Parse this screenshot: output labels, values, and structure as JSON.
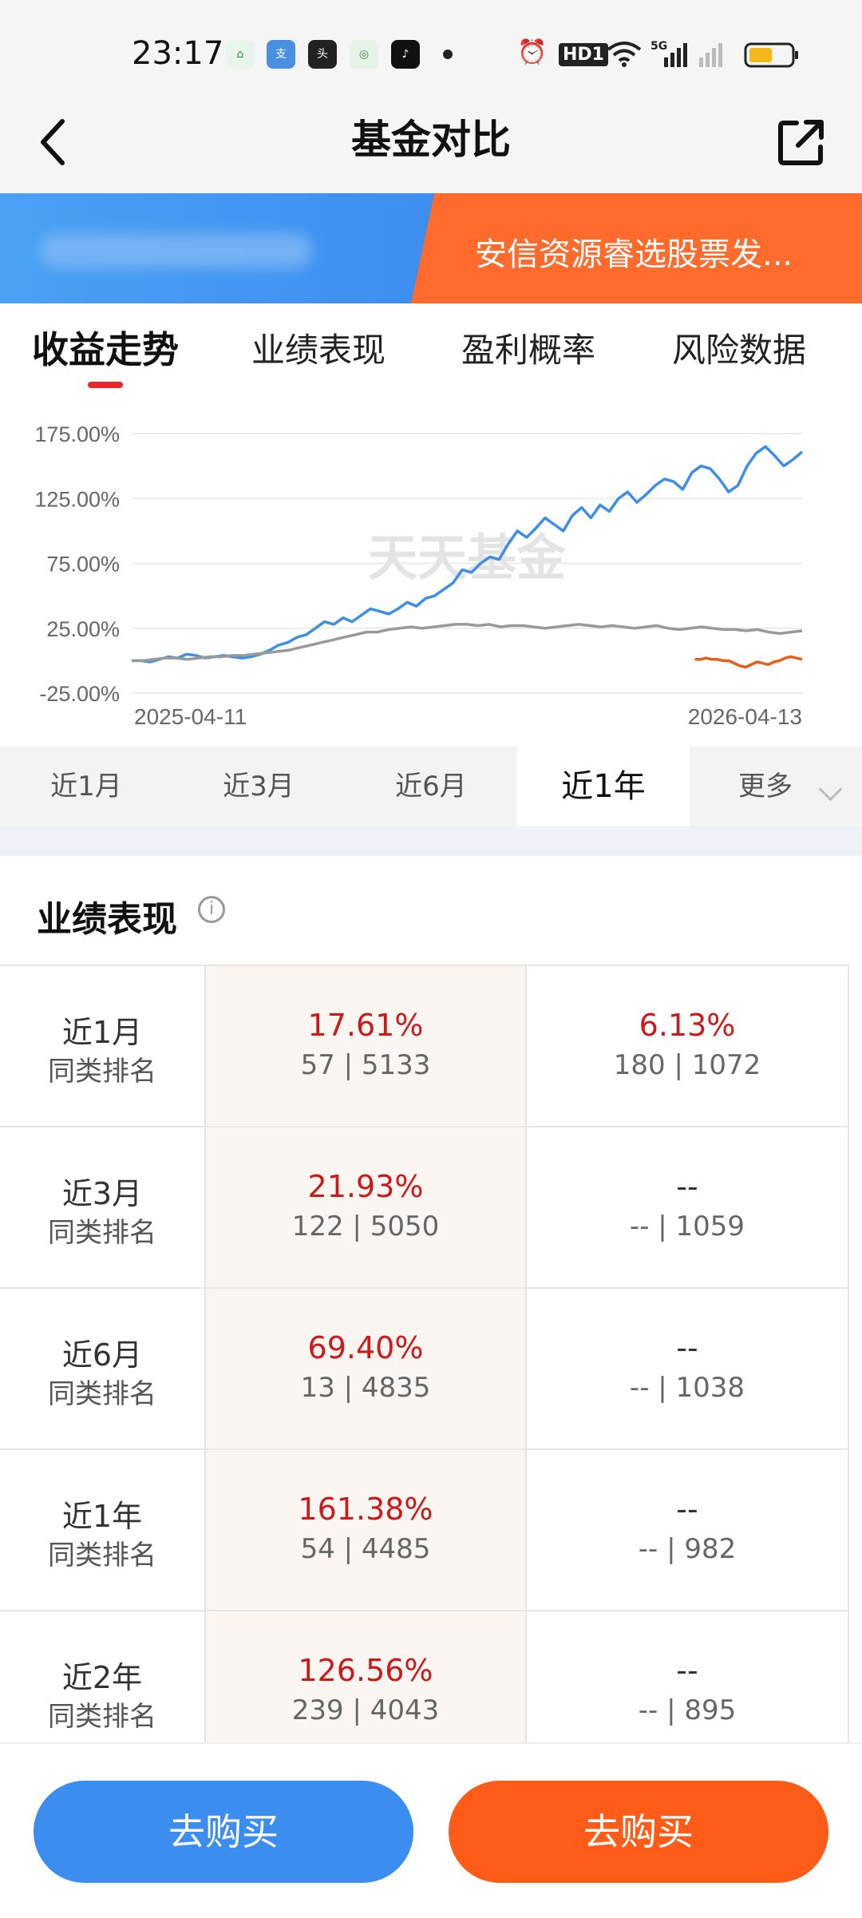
{
  "status": {
    "time": "23:17",
    "hd": "HD1",
    "net": "5G"
  },
  "header": {
    "title": "基金对比"
  },
  "banner": {
    "fund_name": "安信资源睿选股票发..."
  },
  "tabs": [
    "收益走势",
    "业绩表现",
    "盈利概率",
    "风险数据"
  ],
  "chart_data": {
    "type": "line",
    "watermark": "天天基金",
    "x_start": "2025-04-11",
    "x_end": "2026-04-13",
    "y_ticks": [
      "175.00%",
      "125.00%",
      "75.00%",
      "25.00%",
      "-25.00%"
    ],
    "ylim": [
      -25,
      175
    ],
    "colors": {
      "fund1": "#3d8ee8",
      "fund2": "#e85d1a",
      "benchmark": "#999999"
    },
    "series": [
      {
        "key": "fund1",
        "x0": 0,
        "x1": 1,
        "values": [
          0,
          0,
          -1,
          1,
          3,
          2,
          5,
          4,
          2,
          3,
          4,
          3,
          2,
          3,
          5,
          8,
          12,
          14,
          18,
          20,
          25,
          30,
          28,
          33,
          30,
          35,
          40,
          38,
          36,
          40,
          45,
          42,
          48,
          50,
          55,
          60,
          70,
          68,
          75,
          80,
          78,
          90,
          100,
          95,
          102,
          110,
          105,
          100,
          112,
          118,
          110,
          120,
          115,
          125,
          130,
          122,
          128,
          135,
          140,
          138,
          132,
          145,
          150,
          148,
          140,
          130,
          135,
          150,
          160,
          165,
          158,
          150,
          155,
          161
        ]
      },
      {
        "key": "benchmark",
        "x0": 0,
        "x1": 1,
        "values": [
          0,
          0,
          1,
          2,
          2,
          1,
          2,
          3,
          3,
          4,
          4,
          5,
          6,
          7,
          8,
          10,
          12,
          14,
          16,
          18,
          20,
          22,
          22,
          24,
          25,
          26,
          25,
          26,
          27,
          28,
          28,
          27,
          28,
          26,
          27,
          27,
          26,
          25,
          26,
          27,
          28,
          27,
          26,
          27,
          26,
          25,
          26,
          27,
          25,
          24,
          25,
          26,
          25,
          24,
          24,
          23,
          24,
          22,
          21,
          22,
          23
        ]
      },
      {
        "key": "fund2",
        "x0": 0.84,
        "x1": 1,
        "values": [
          1,
          1,
          2,
          1,
          1,
          0,
          0,
          -2,
          -4,
          -5,
          -3,
          -1,
          -2,
          -3,
          -1,
          0,
          2,
          3,
          2,
          1
        ]
      }
    ]
  },
  "range_tabs": [
    "近1月",
    "近3月",
    "近6月",
    "近1年",
    "更多"
  ],
  "perf": {
    "title": "业绩表现",
    "info_icon": "info-icon",
    "rank_label": "同类排名",
    "rows": [
      {
        "period": "近1月",
        "f1_return": "17.61%",
        "f1_rank": "57 | 5133",
        "f2_return": "6.13%",
        "f2_rank": "180 | 1072"
      },
      {
        "period": "近3月",
        "f1_return": "21.93%",
        "f1_rank": "122 | 5050",
        "f2_return": "--",
        "f2_rank": "-- | 1059"
      },
      {
        "period": "近6月",
        "f1_return": "69.40%",
        "f1_rank": "13 | 4835",
        "f2_return": "--",
        "f2_rank": "-- | 1038"
      },
      {
        "period": "近1年",
        "f1_return": "161.38%",
        "f1_rank": "54 | 4485",
        "f2_return": "--",
        "f2_rank": "-- | 982"
      },
      {
        "period": "近2年",
        "f1_return": "126.56%",
        "f1_rank": "239 | 4043",
        "f2_return": "--",
        "f2_rank": "-- | 895"
      }
    ]
  },
  "buttons": {
    "buy1": "去购买",
    "buy2": "去购买"
  }
}
